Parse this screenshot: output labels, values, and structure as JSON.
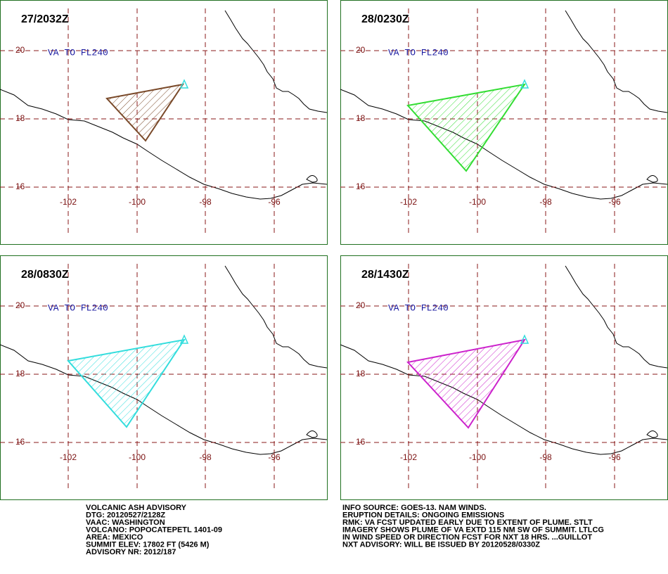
{
  "panels": [
    {
      "time": "27/2032Z",
      "label": "VA TO FL240",
      "color": "#7a4a2a"
    },
    {
      "time": "28/0230Z",
      "label": "VA TO FL240",
      "color": "#33dd33"
    },
    {
      "time": "28/0830Z",
      "label": "VA TO FL240",
      "color": "#33dddd"
    },
    {
      "time": "28/1430Z",
      "label": "VA TO FL240",
      "color": "#cc22cc"
    }
  ],
  "grid": {
    "lat_labels": [
      "20",
      "18",
      "16"
    ],
    "lon_labels": [
      "-102",
      "-100",
      "-98",
      "-96"
    ]
  },
  "advisory_left": [
    "VOLCANIC ASH ADVISORY",
    "DTG: 20120527/2128Z",
    "VAAC: WASHINGTON",
    "VOLCANO: POPOCATEPETL 1401-09",
    "AREA: MEXICO",
    "SUMMIT ELEV: 17802 FT (5426 M)",
    "ADVISORY NR: 2012/187"
  ],
  "advisory_right": [
    "INFO SOURCE: GOES-13. NAM WINDS.",
    "ERUPTION DETAILS: ONGOING EMISSIONS",
    "RMK: VA FCST UPDATED EARLY DUE TO EXTENT OF PLUME. STLT",
    "IMAGERY SHOWS PLUME OF VA EXTD 115 NM SW OF SUMMIT. LTLCG",
    "IN WIND SPEED OR DIRECTION FCST FOR NXT 18 HRS. ...GUILLOT",
    "NXT ADVISORY: WILL BE ISSUED BY 20120528/0330Z"
  ]
}
